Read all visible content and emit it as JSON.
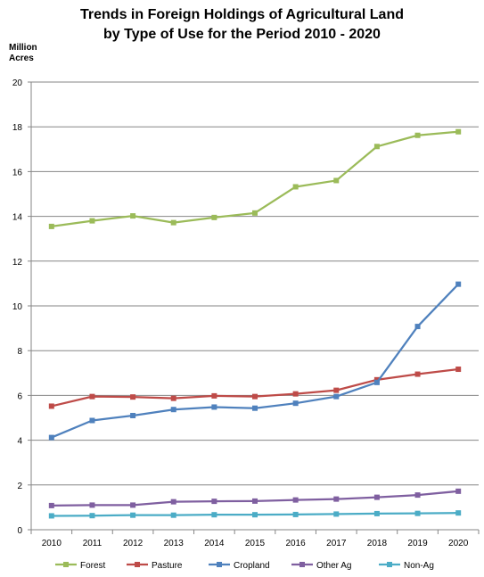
{
  "chart_data": {
    "type": "line",
    "title_line1": "Trends in Foreign Holdings of Agricultural Land",
    "title_line2": "by Type of Use for the Period 2010 - 2020",
    "ylabel_line1": "Million",
    "ylabel_line2": "Acres",
    "xlabel": "",
    "ylim": [
      0,
      20
    ],
    "yticks": [
      0,
      2,
      4,
      6,
      8,
      10,
      12,
      14,
      16,
      18,
      20
    ],
    "categories": [
      "2010",
      "2011",
      "2012",
      "2013",
      "2014",
      "2015",
      "2016",
      "2017",
      "2018",
      "2019",
      "2020"
    ],
    "grid": "horizontal",
    "legend_position": "bottom",
    "series": [
      {
        "name": "Forest",
        "color": "#9bbb59",
        "values": [
          13.55,
          13.8,
          14.02,
          13.72,
          13.95,
          14.15,
          15.32,
          15.6,
          17.12,
          17.62,
          17.78
        ]
      },
      {
        "name": "Pasture",
        "color": "#be4b48",
        "values": [
          5.52,
          5.95,
          5.93,
          5.87,
          5.98,
          5.95,
          6.07,
          6.23,
          6.7,
          6.95,
          7.17
        ]
      },
      {
        "name": "Cropland",
        "color": "#4f81bd",
        "values": [
          4.12,
          4.88,
          5.1,
          5.37,
          5.48,
          5.43,
          5.65,
          5.95,
          6.58,
          9.08,
          10.97
        ]
      },
      {
        "name": "Other Ag",
        "color": "#7f5fa0",
        "values": [
          1.08,
          1.1,
          1.1,
          1.25,
          1.27,
          1.28,
          1.33,
          1.37,
          1.45,
          1.55,
          1.72
        ]
      },
      {
        "name": "Non-Ag",
        "color": "#4bacc6",
        "values": [
          0.62,
          0.63,
          0.65,
          0.65,
          0.67,
          0.67,
          0.68,
          0.7,
          0.72,
          0.73,
          0.75
        ]
      }
    ]
  }
}
